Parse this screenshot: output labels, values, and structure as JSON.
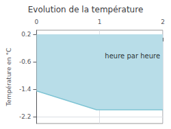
{
  "chart_data": {
    "type": "area",
    "title": "Evolution de la température",
    "ylabel": "Température en °C",
    "x": [
      0,
      0.95,
      2
    ],
    "series": [
      {
        "type": "area",
        "color": "#b8dde8",
        "values": [
          -1.45,
          -2.0,
          -2.0
        ],
        "upper": [
          0.2,
          0.2,
          0.2
        ]
      },
      {
        "type": "line",
        "color": "#7fc4d4",
        "values": [
          -1.45,
          -2.0,
          -2.0
        ]
      }
    ],
    "annotations": [
      {
        "text": "heure par heure",
        "x": 1.52,
        "y": -0.42
      }
    ],
    "xlim": [
      0,
      2
    ],
    "xticks": [
      0,
      1,
      2
    ],
    "ylim": [
      -2.4,
      0.32
    ],
    "yticks": [
      0.2,
      -0.6,
      -1.4,
      -2.2
    ],
    "grid": true
  }
}
